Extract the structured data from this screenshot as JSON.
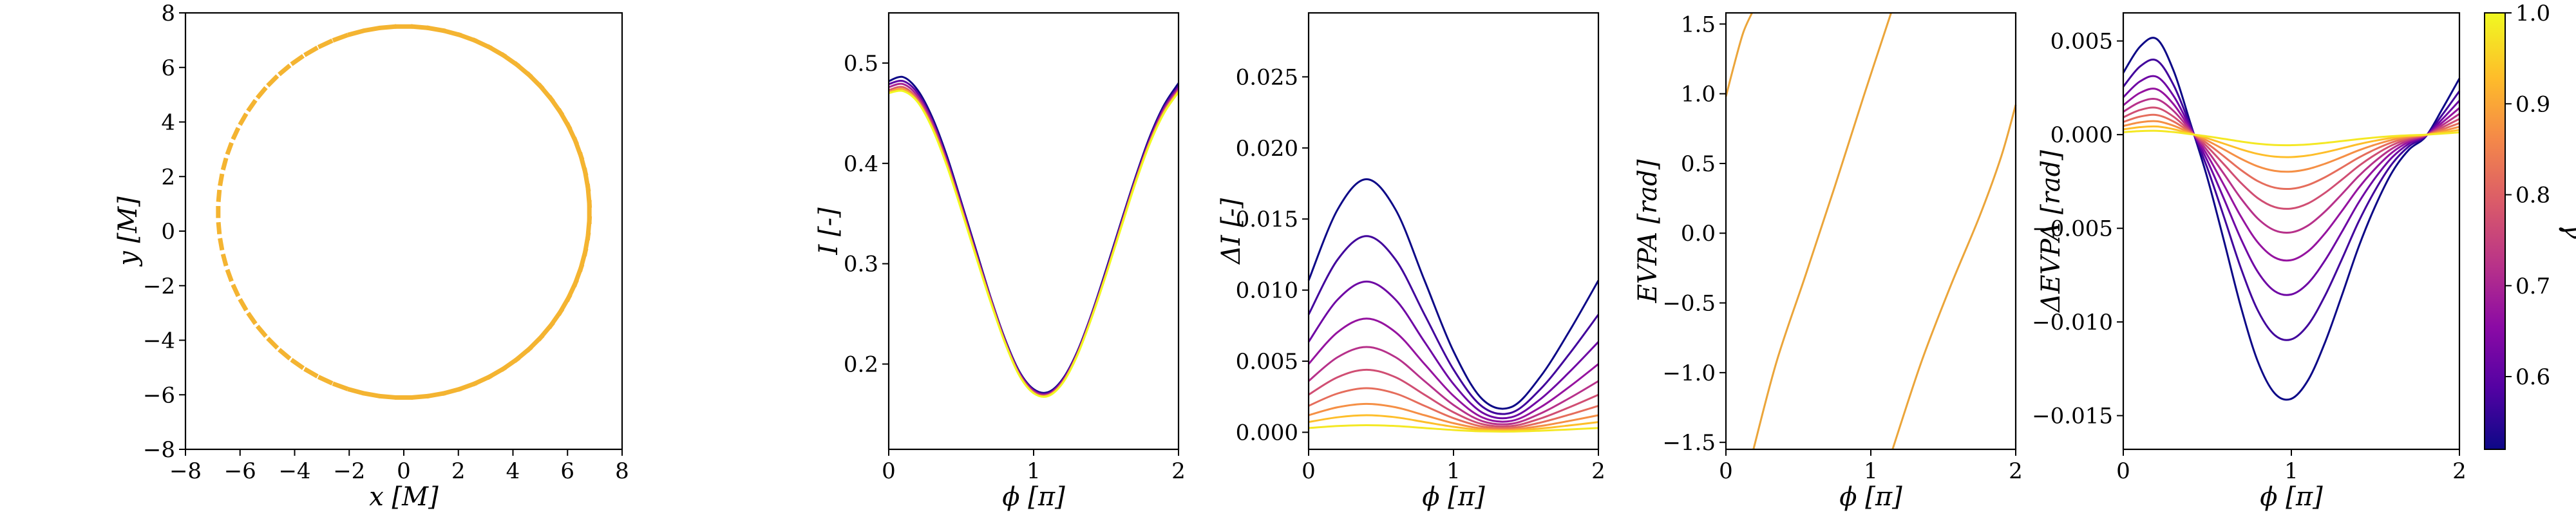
{
  "figure": {
    "colorbar": {
      "label": "γ",
      "range": [
        0.52,
        1.0
      ],
      "ticks": [
        "0.6",
        "0.7",
        "0.8",
        "0.9",
        "1.0"
      ],
      "tick_values": [
        0.6,
        0.7,
        0.8,
        0.9,
        1.0
      ],
      "colormap": "plasma"
    }
  },
  "chart_data": [
    {
      "type": "scatter",
      "id": "ring",
      "xlabel": "x [M]",
      "ylabel": "y [M]",
      "xlim": [
        -8,
        8
      ],
      "ylim": [
        -8,
        8
      ],
      "xticks": [
        "−8",
        "−6",
        "−4",
        "−2",
        "0",
        "2",
        "4",
        "6",
        "8"
      ],
      "yticks": [
        "−8",
        "−6",
        "−4",
        "−2",
        "0",
        "2",
        "4",
        "6",
        "8"
      ],
      "xtick_values": [
        -8,
        -6,
        -4,
        -2,
        0,
        2,
        4,
        6,
        8
      ],
      "ytick_values": [
        -8,
        -6,
        -4,
        -2,
        0,
        2,
        4,
        6,
        8
      ],
      "marker_color": "#f4b431",
      "ring": {
        "center_x": 0.0,
        "center_y": 0.7,
        "radius": 6.8,
        "segments": 72
      }
    },
    {
      "type": "line",
      "id": "intensity",
      "xlabel": "ϕ [π]",
      "ylabel": "I [-]",
      "xlim": [
        0,
        2
      ],
      "ylim": [
        0.115,
        0.55
      ],
      "xticks": [
        "0",
        "1",
        "2"
      ],
      "xtick_values": [
        0,
        1,
        2
      ],
      "yticks": [
        "0.2",
        "0.3",
        "0.4",
        "0.5"
      ],
      "ytick_values": [
        0.2,
        0.3,
        0.4,
        0.5
      ],
      "x": [
        0,
        0.1,
        0.2,
        0.3,
        0.4,
        0.5,
        0.6,
        0.7,
        0.8,
        0.9,
        1.0,
        1.1,
        1.2,
        1.3,
        1.4,
        1.5,
        1.6,
        1.7,
        1.8,
        1.9,
        2.0
      ],
      "series": [
        {
          "gamma": 0.52,
          "values": [
            0.482,
            0.486,
            0.473,
            0.446,
            0.408,
            0.362,
            0.315,
            0.268,
            0.226,
            0.193,
            0.175,
            0.172,
            0.185,
            0.212,
            0.25,
            0.294,
            0.34,
            0.385,
            0.426,
            0.458,
            0.48
          ]
        },
        {
          "gamma": 0.6,
          "values": [
            0.479,
            0.482,
            0.47,
            0.443,
            0.405,
            0.36,
            0.313,
            0.267,
            0.225,
            0.192,
            0.174,
            0.171,
            0.184,
            0.211,
            0.249,
            0.292,
            0.338,
            0.383,
            0.424,
            0.456,
            0.477
          ]
        },
        {
          "gamma": 0.7,
          "values": [
            0.476,
            0.479,
            0.467,
            0.441,
            0.403,
            0.358,
            0.311,
            0.266,
            0.224,
            0.191,
            0.173,
            0.17,
            0.183,
            0.21,
            0.248,
            0.291,
            0.337,
            0.382,
            0.422,
            0.454,
            0.475
          ]
        },
        {
          "gamma": 0.8,
          "values": [
            0.473,
            0.476,
            0.464,
            0.438,
            0.401,
            0.356,
            0.31,
            0.265,
            0.223,
            0.19,
            0.172,
            0.169,
            0.182,
            0.209,
            0.247,
            0.29,
            0.336,
            0.381,
            0.421,
            0.452,
            0.473
          ]
        },
        {
          "gamma": 0.9,
          "values": [
            0.471,
            0.474,
            0.462,
            0.436,
            0.399,
            0.355,
            0.309,
            0.264,
            0.222,
            0.189,
            0.171,
            0.169,
            0.181,
            0.209,
            0.246,
            0.289,
            0.335,
            0.38,
            0.42,
            0.451,
            0.472
          ]
        },
        {
          "gamma": 1.0,
          "values": [
            0.47,
            0.472,
            0.461,
            0.435,
            0.398,
            0.354,
            0.308,
            0.263,
            0.222,
            0.189,
            0.171,
            0.168,
            0.181,
            0.208,
            0.246,
            0.289,
            0.334,
            0.379,
            0.419,
            0.45,
            0.471
          ]
        }
      ]
    },
    {
      "type": "line",
      "id": "delta-intensity",
      "xlabel": "ϕ [π]",
      "ylabel": "ΔI [-]",
      "xlim": [
        0,
        2
      ],
      "ylim": [
        -0.0012,
        0.0295
      ],
      "xticks": [
        "0",
        "1",
        "2"
      ],
      "xtick_values": [
        0,
        1,
        2
      ],
      "yticks": [
        "0.000",
        "0.005",
        "0.010",
        "0.015",
        "0.020",
        "0.025"
      ],
      "ytick_values": [
        0,
        0.005,
        0.01,
        0.015,
        0.02,
        0.025
      ],
      "shape": {
        "phi": [
          0,
          0.2,
          0.4,
          0.6,
          0.8,
          1.0,
          1.2,
          1.4,
          1.6,
          1.8,
          2.0
        ],
        "factor": [
          0.6,
          0.88,
          1.0,
          0.88,
          0.6,
          0.32,
          0.13,
          0.1,
          0.22,
          0.4,
          0.6
        ]
      },
      "series": [
        {
          "gamma": 0.52,
          "amplitude": 0.0178
        },
        {
          "gamma": 0.57,
          "amplitude": 0.0138
        },
        {
          "gamma": 0.62,
          "amplitude": 0.0106
        },
        {
          "gamma": 0.67,
          "amplitude": 0.008
        },
        {
          "gamma": 0.72,
          "amplitude": 0.006
        },
        {
          "gamma": 0.77,
          "amplitude": 0.0044
        },
        {
          "gamma": 0.82,
          "amplitude": 0.0031
        },
        {
          "gamma": 0.87,
          "amplitude": 0.002
        },
        {
          "gamma": 0.93,
          "amplitude": 0.0012
        },
        {
          "gamma": 0.98,
          "amplitude": 0.0005
        }
      ]
    },
    {
      "type": "line",
      "id": "evpa",
      "xlabel": "ϕ [π]",
      "ylabel": "EVPA [rad]",
      "xlim": [
        0,
        2
      ],
      "ylim": [
        -1.55,
        1.58
      ],
      "xticks": [
        "0",
        "1",
        "2"
      ],
      "xtick_values": [
        0,
        1,
        2
      ],
      "yticks": [
        "−1.5",
        "−1.0",
        "−0.5",
        "0.0",
        "0.5",
        "1.0",
        "1.5"
      ],
      "ytick_values": [
        -1.5,
        -1.0,
        -0.5,
        0,
        0.5,
        1.0,
        1.5
      ],
      "line_color": "#eba53a",
      "segments": [
        {
          "x": [
            0.0,
            0.06,
            0.12,
            0.18
          ],
          "y": [
            0.98,
            1.22,
            1.44,
            1.58
          ]
        },
        {
          "x": [
            0.19,
            0.35,
            0.55,
            0.75,
            0.95,
            1.14
          ],
          "y": [
            -1.55,
            -0.92,
            -0.3,
            0.33,
            0.98,
            1.58
          ]
        },
        {
          "x": [
            1.15,
            1.35,
            1.55,
            1.75,
            1.9,
            2.0
          ],
          "y": [
            -1.55,
            -0.92,
            -0.38,
            0.12,
            0.55,
            0.92
          ]
        }
      ]
    },
    {
      "type": "line",
      "id": "delta-evpa",
      "xlabel": "ϕ [π]",
      "ylabel": "ΔEVPA [rad]",
      "xlim": [
        0,
        2
      ],
      "ylim": [
        -0.0168,
        0.0065
      ],
      "xticks": [
        "0",
        "1",
        "2"
      ],
      "xtick_values": [
        0,
        1,
        2
      ],
      "yticks": [
        "−0.015",
        "−0.010",
        "−0.005",
        "0.000",
        "0.005"
      ],
      "ytick_values": [
        -0.015,
        -0.01,
        -0.005,
        0,
        0.005
      ],
      "shape": {
        "phi": [
          0,
          0.1,
          0.2,
          0.3,
          0.4,
          0.5,
          0.6,
          0.7,
          0.8,
          0.9,
          1.0,
          1.1,
          1.2,
          1.3,
          1.4,
          1.5,
          1.6,
          1.7,
          1.8,
          1.9,
          2.0
        ],
        "values": [
          0.0033,
          0.0047,
          0.0051,
          0.0034,
          0.0006,
          -0.0023,
          -0.0057,
          -0.0092,
          -0.0121,
          -0.0138,
          -0.0141,
          -0.0131,
          -0.0111,
          -0.0086,
          -0.006,
          -0.0038,
          -0.002,
          -0.0008,
          -0.0001,
          0.0014,
          0.003
        ]
      },
      "series": [
        {
          "gamma": 0.52,
          "scale": 1.0
        },
        {
          "gamma": 0.57,
          "scale": 0.775
        },
        {
          "gamma": 0.62,
          "scale": 0.605
        },
        {
          "gamma": 0.67,
          "scale": 0.475
        },
        {
          "gamma": 0.72,
          "scale": 0.37
        },
        {
          "gamma": 0.77,
          "scale": 0.28
        },
        {
          "gamma": 0.82,
          "scale": 0.205
        },
        {
          "gamma": 0.87,
          "scale": 0.14
        },
        {
          "gamma": 0.93,
          "scale": 0.085
        },
        {
          "gamma": 0.98,
          "scale": 0.04
        }
      ]
    }
  ]
}
